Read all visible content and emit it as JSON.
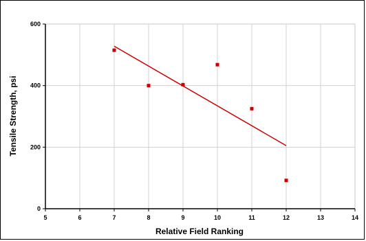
{
  "chart_data": {
    "type": "scatter",
    "title": "",
    "xlabel": "Relative Field Ranking",
    "ylabel": "Tensile Strength, psi",
    "xlim": [
      5,
      14
    ],
    "ylim": [
      0,
      600
    ],
    "xticks": [
      5,
      6,
      7,
      8,
      9,
      10,
      11,
      12,
      13,
      14
    ],
    "yticks": [
      0,
      200,
      400,
      600
    ],
    "grid": true,
    "legend": "none",
    "marker_color": "#cc0000",
    "line_color": "#cc0000",
    "series": [
      {
        "points": [
          {
            "x": 7,
            "y": 515
          },
          {
            "x": 8,
            "y": 400
          },
          {
            "x": 9,
            "y": 403
          },
          {
            "x": 10,
            "y": 468
          },
          {
            "x": 11,
            "y": 325
          },
          {
            "x": 12,
            "y": 92
          }
        ]
      }
    ],
    "trendline": {
      "x": [
        7,
        12
      ],
      "y": [
        528,
        205
      ]
    }
  }
}
